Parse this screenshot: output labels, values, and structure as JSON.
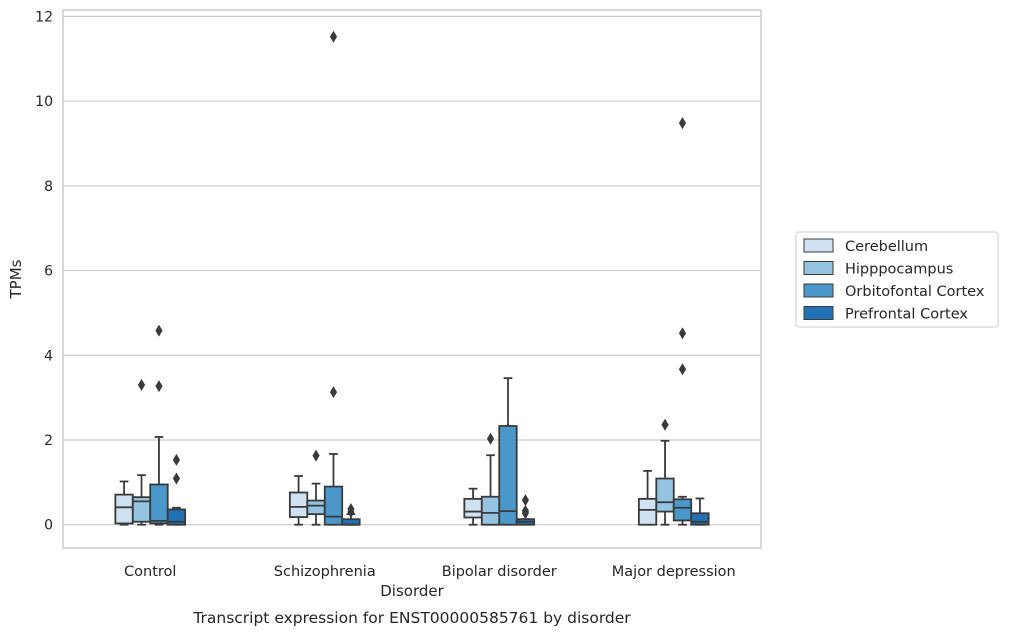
{
  "chart_data": {
    "type": "box",
    "title": "Transcript expression for ENST00000585761 by disorder",
    "xlabel": "Disorder",
    "ylabel": "TPMs",
    "ylim": [
      -0.55,
      12.15
    ],
    "yticks": [
      0,
      2,
      4,
      6,
      8,
      10,
      12
    ],
    "grid": "horizontal",
    "legend_position": "right",
    "categories": [
      "Control",
      "Schizophrenia",
      "Bipolar disorder",
      "Major depression"
    ],
    "series": [
      {
        "name": "Cerebellum",
        "color": "#d0e1f2",
        "boxes": [
          {
            "whislo": 0.0,
            "q1": 0.03,
            "med": 0.41,
            "q3": 0.71,
            "whishi": 1.02,
            "fliers": []
          },
          {
            "whislo": 0.0,
            "q1": 0.18,
            "med": 0.42,
            "q3": 0.76,
            "whishi": 1.15,
            "fliers": []
          },
          {
            "whislo": 0.0,
            "q1": 0.17,
            "med": 0.31,
            "q3": 0.61,
            "whishi": 0.85,
            "fliers": []
          },
          {
            "whislo": 0.0,
            "q1": 0.0,
            "med": 0.35,
            "q3": 0.61,
            "whishi": 1.27,
            "fliers": []
          }
        ]
      },
      {
        "name": "Hipppocampus",
        "color": "#94c4df",
        "boxes": [
          {
            "whislo": 0.0,
            "q1": 0.07,
            "med": 0.55,
            "q3": 0.65,
            "whishi": 1.17,
            "fliers": [
              3.3
            ]
          },
          {
            "whislo": 0.0,
            "q1": 0.25,
            "med": 0.45,
            "q3": 0.57,
            "whishi": 0.97,
            "fliers": [
              1.63
            ]
          },
          {
            "whislo": 0.0,
            "q1": 0.0,
            "med": 0.28,
            "q3": 0.66,
            "whishi": 1.64,
            "fliers": [
              2.03
            ]
          },
          {
            "whislo": 0.0,
            "q1": 0.31,
            "med": 0.53,
            "q3": 1.09,
            "whishi": 1.98,
            "fliers": [
              2.36
            ]
          }
        ]
      },
      {
        "name": "Orbitofontal Cortex",
        "color": "#4a98c9",
        "boxes": [
          {
            "whislo": 0.0,
            "q1": 0.03,
            "med": 0.09,
            "q3": 0.95,
            "whishi": 2.07,
            "fliers": [
              3.27,
              4.58
            ]
          },
          {
            "whislo": 0.0,
            "q1": 0.0,
            "med": 0.19,
            "q3": 0.9,
            "whishi": 1.67,
            "fliers": [
              3.13,
              11.52
            ]
          },
          {
            "whislo": 0.0,
            "q1": 0.0,
            "med": 0.32,
            "q3": 2.33,
            "whishi": 3.46,
            "fliers": []
          },
          {
            "whislo": 0.0,
            "q1": 0.1,
            "med": 0.4,
            "q3": 0.6,
            "whishi": 0.66,
            "fliers": [
              3.67,
              4.52,
              9.48
            ]
          }
        ]
      },
      {
        "name": "Prefrontal Cortex",
        "color": "#2171b5",
        "boxes": [
          {
            "whislo": 0.0,
            "q1": 0.0,
            "med": 0.07,
            "q3": 0.36,
            "whishi": 0.4,
            "fliers": [
              1.09,
              1.53
            ]
          },
          {
            "whislo": 0.0,
            "q1": 0.0,
            "med": 0.0,
            "q3": 0.13,
            "whishi": 0.25,
            "fliers": [
              0.3,
              0.37
            ]
          },
          {
            "whislo": 0.0,
            "q1": 0.0,
            "med": 0.07,
            "q3": 0.13,
            "whishi": 0.13,
            "fliers": [
              0.27,
              0.33,
              0.58
            ]
          },
          {
            "whislo": 0.0,
            "q1": 0.0,
            "med": 0.07,
            "q3": 0.27,
            "whishi": 0.62,
            "fliers": []
          }
        ]
      }
    ]
  }
}
